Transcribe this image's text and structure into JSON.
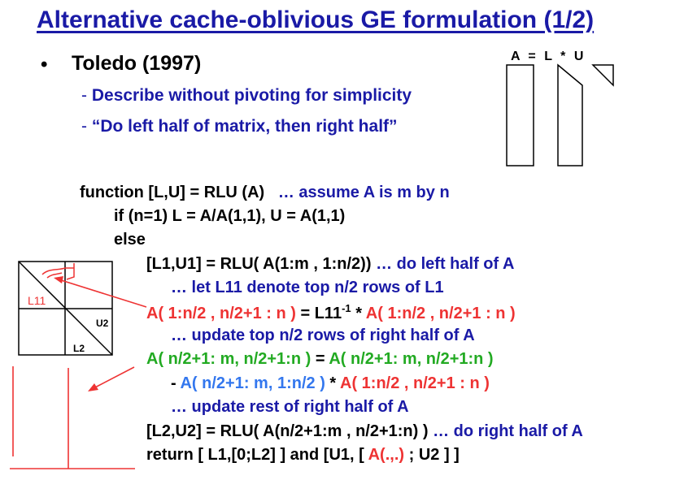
{
  "title": "Alternative cache-oblivious GE formulation (1/2)",
  "bullet": {
    "marker": "•",
    "text": "Toledo (1997)",
    "subs": [
      {
        "dash": "-",
        "text": "Describe without pivoting for simplicity"
      },
      {
        "dash": "-",
        "text": "“Do left half of matrix, then right half”"
      }
    ]
  },
  "equation": {
    "a": "A",
    "eq": "=",
    "l": "L",
    "star": "*",
    "u": "U"
  },
  "diagram": {
    "u2": "U2",
    "l2": "L2",
    "l11_handwritten": "L11"
  },
  "code": {
    "line1": {
      "kw": "function [L,U] = RLU (A)",
      "comment": "… assume A is m by n"
    },
    "line2": "if (n=1)   L = A/A(1,1),  U = A(1,1)",
    "line3": "else",
    "line4": {
      "kw": "[L1,U1] = RLU( A(1:m , 1:n/2))",
      "comment": "… do left half of A"
    },
    "line5": "… let L11 denote top n/2 rows of L1",
    "line6": {
      "a": "A( 1:n/2 , n/2+1 : n )",
      "eq": " = L11",
      "sup": "-1",
      "star": " * ",
      "b": "A( 1:n/2 , n/2+1 : n )"
    },
    "line7": "… update top n/2 rows of right half of A",
    "line8": {
      "a": "A( n/2+1: m, n/2+1:n )",
      "eq": " = ",
      "b": "A( n/2+1: m, n/2+1:n )"
    },
    "line9": {
      "dash": "- ",
      "a": "A( n/2+1: m, 1:n/2 )",
      "star": " * ",
      "b": "A( 1:n/2 , n/2+1 : n )"
    },
    "line10": "… update rest of right half of A",
    "line11": {
      "kw": "[L2,U2] = RLU( A(n/2+1:m , n/2+1:n) )",
      "comment": "… do right half of A"
    },
    "line12": {
      "pre": "return [ L1,[0;L2] ] and [U1, [ ",
      "red": "A(.,.)",
      "post": " ; U2 ] ]"
    }
  },
  "colors": {
    "title": "#1a1aa6",
    "blue": "#1a1aa6",
    "red": "#ee3333",
    "green": "#22aa22",
    "light_blue": "#3377ee"
  }
}
